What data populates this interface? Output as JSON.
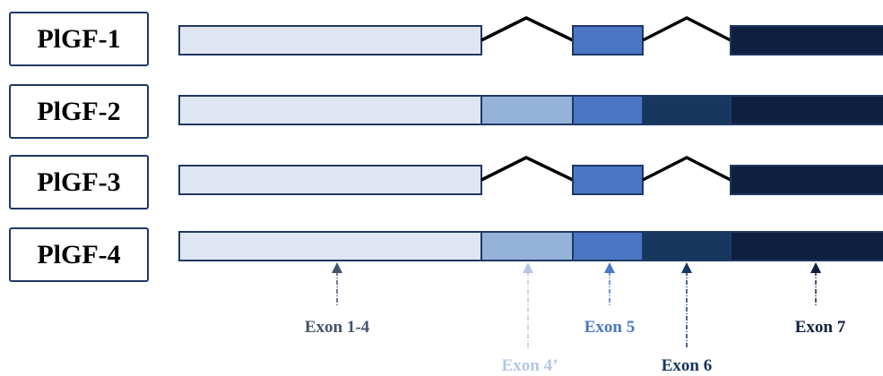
{
  "isoforms": [
    {
      "label": "PlGF-1",
      "exons": [
        "e14",
        "e5",
        "e7"
      ]
    },
    {
      "label": "PlGF-2",
      "exons": [
        "e14",
        "e4p",
        "e5",
        "e6",
        "e7"
      ]
    },
    {
      "label": "PlGF-3",
      "exons": [
        "e14",
        "e5",
        "e7"
      ]
    },
    {
      "label": "PlGF-4",
      "exons": [
        "e14",
        "e4p",
        "e5",
        "e6",
        "e7"
      ]
    }
  ],
  "exons": {
    "e14": {
      "name": "Exon 1-4",
      "color": "#dfe5f1"
    },
    "e4p": {
      "name": "Exon 4’",
      "color": "#95b2da"
    },
    "e5": {
      "name": "Exon 5",
      "color": "#4b76c4"
    },
    "e6": {
      "name": "Exon 6",
      "color": "#17375f"
    },
    "e7": {
      "name": "Exon 7",
      "color": "#0f1f3f"
    }
  },
  "exon_label_colors": {
    "e14": "#44546a",
    "e4p": "#b4c6e7",
    "e5": "#4b76c4",
    "e6": "#17375f",
    "e7": "#0f1f3f"
  },
  "outline_color": "#1f3864"
}
